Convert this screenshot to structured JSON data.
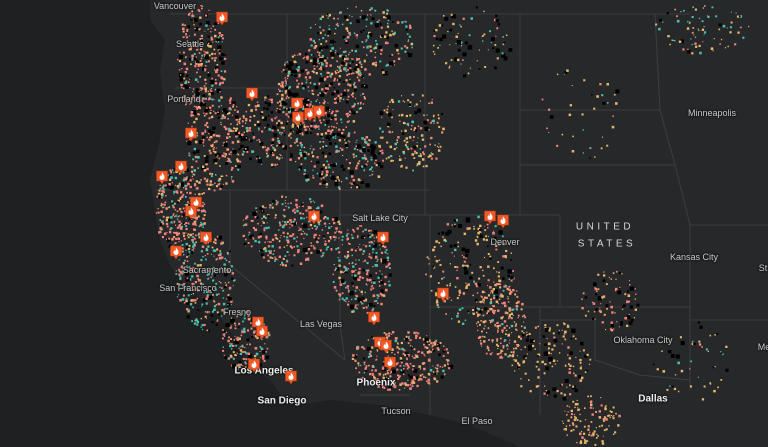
{
  "map": {
    "basemap": "dark-gray",
    "country_label": [
      "UNITED",
      "STATES"
    ],
    "cities": {
      "vancouver": "Vancouver",
      "seattle": "Seattle",
      "portland": "Portland",
      "minneapolis": "Minneapolis",
      "salt_lake_city": "Salt Lake City",
      "denver": "Denver",
      "kansas_city": "Kansas City",
      "st_louis": "St",
      "sacramento": "Sacramento",
      "san_francisco": "San Francisco",
      "fresno": "Fresno",
      "las_vegas": "Las Vegas",
      "oklahoma_city": "Oklahoma City",
      "memphis": "Me",
      "los_angeles": "Los Angeles",
      "phoenix": "Phoenix",
      "san_diego": "San Diego",
      "dallas": "Dallas",
      "tucson": "Tucson",
      "el_paso": "El Paso"
    },
    "layer_colors": {
      "land": "#27282a",
      "water": "#1f2022",
      "borders": "#3c3d40",
      "fire_marker": "#f05a28",
      "points": [
        "#f4837c",
        "#e6b66a",
        "#47c2b1",
        "#000000"
      ]
    },
    "fire_marker_icon": "fire-icon"
  }
}
